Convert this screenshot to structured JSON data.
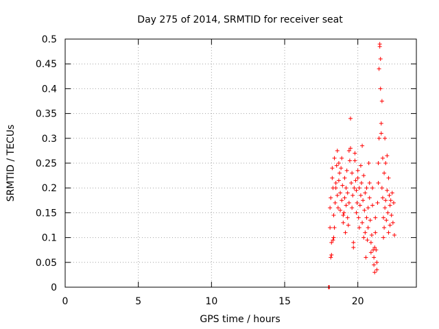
{
  "chart_data": {
    "type": "scatter",
    "title": "Day 275 of 2014, SRMTID for receiver seat",
    "xlabel": "GPS time / hours",
    "ylabel": "SRMTID / TECUs",
    "xlim": [
      0,
      24
    ],
    "ylim": [
      0,
      0.5
    ],
    "x_ticks": [
      0,
      5,
      10,
      15,
      20
    ],
    "x_tick_labels": [
      "0",
      "5",
      "10",
      "15",
      "20"
    ],
    "y_ticks": [
      0,
      0.05,
      0.1,
      0.15,
      0.2,
      0.25,
      0.3,
      0.35,
      0.4,
      0.45,
      0.5
    ],
    "y_tick_labels": [
      "0",
      "0.05",
      "0.1",
      "0.15",
      "0.2",
      "0.25",
      "0.3",
      "0.35",
      "0.4",
      "0.45",
      "0.5"
    ],
    "grid": true,
    "marker": "+",
    "marker_color": "#ff0000",
    "series": [
      {
        "name": "SRMTID",
        "points": [
          [
            18.0,
            0.0
          ],
          [
            18.02,
            0.0
          ],
          [
            18.05,
            0.0
          ],
          [
            18.1,
            0.12
          ],
          [
            18.1,
            0.16
          ],
          [
            18.15,
            0.18
          ],
          [
            18.15,
            0.06
          ],
          [
            18.2,
            0.065
          ],
          [
            18.2,
            0.09
          ],
          [
            18.25,
            0.22
          ],
          [
            18.25,
            0.24
          ],
          [
            18.3,
            0.2
          ],
          [
            18.3,
            0.095
          ],
          [
            18.35,
            0.1
          ],
          [
            18.35,
            0.145
          ],
          [
            18.4,
            0.26
          ],
          [
            18.4,
            0.12
          ],
          [
            18.45,
            0.17
          ],
          [
            18.5,
            0.21
          ],
          [
            18.5,
            0.2
          ],
          [
            18.55,
            0.245
          ],
          [
            18.6,
            0.275
          ],
          [
            18.6,
            0.185
          ],
          [
            18.65,
            0.16
          ],
          [
            18.7,
            0.25
          ],
          [
            18.7,
            0.215
          ],
          [
            18.75,
            0.23
          ],
          [
            18.8,
            0.19
          ],
          [
            18.8,
            0.155
          ],
          [
            18.85,
            0.24
          ],
          [
            18.9,
            0.175
          ],
          [
            18.9,
            0.26
          ],
          [
            18.95,
            0.205
          ],
          [
            19.0,
            0.13
          ],
          [
            19.0,
            0.145
          ],
          [
            19.05,
            0.15
          ],
          [
            19.1,
            0.22
          ],
          [
            19.1,
            0.18
          ],
          [
            19.15,
            0.11
          ],
          [
            19.2,
            0.165
          ],
          [
            19.2,
            0.2
          ],
          [
            19.25,
            0.235
          ],
          [
            19.3,
            0.14
          ],
          [
            19.3,
            0.19
          ],
          [
            19.35,
            0.125
          ],
          [
            19.4,
            0.275
          ],
          [
            19.4,
            0.17
          ],
          [
            19.45,
            0.255
          ],
          [
            19.5,
            0.34
          ],
          [
            19.5,
            0.28
          ],
          [
            19.55,
            0.21
          ],
          [
            19.6,
            0.23
          ],
          [
            19.6,
            0.16
          ],
          [
            19.65,
            0.185
          ],
          [
            19.7,
            0.09
          ],
          [
            19.7,
            0.08
          ],
          [
            19.75,
            0.2
          ],
          [
            19.8,
            0.27
          ],
          [
            19.8,
            0.255
          ],
          [
            19.85,
            0.215
          ],
          [
            19.9,
            0.195
          ],
          [
            19.9,
            0.15
          ],
          [
            19.95,
            0.17
          ],
          [
            20.0,
            0.235
          ],
          [
            20.0,
            0.22
          ],
          [
            20.05,
            0.14
          ],
          [
            20.1,
            0.2
          ],
          [
            20.1,
            0.12
          ],
          [
            20.15,
            0.165
          ],
          [
            20.2,
            0.245
          ],
          [
            20.2,
            0.185
          ],
          [
            20.25,
            0.21
          ],
          [
            20.3,
            0.285
          ],
          [
            20.3,
            0.13
          ],
          [
            20.35,
            0.175
          ],
          [
            20.4,
            0.225
          ],
          [
            20.4,
            0.1
          ],
          [
            20.45,
            0.155
          ],
          [
            20.5,
            0.19
          ],
          [
            20.5,
            0.11
          ],
          [
            20.55,
            0.06
          ],
          [
            20.6,
            0.2
          ],
          [
            20.6,
            0.14
          ],
          [
            20.65,
            0.095
          ],
          [
            20.7,
            0.16
          ],
          [
            20.7,
            0.12
          ],
          [
            20.75,
            0.25
          ],
          [
            20.8,
            0.21
          ],
          [
            20.8,
            0.18
          ],
          [
            20.85,
            0.135
          ],
          [
            20.9,
            0.09
          ],
          [
            20.9,
            0.07
          ],
          [
            20.95,
            0.105
          ],
          [
            21.0,
            0.2
          ],
          [
            21.0,
            0.165
          ],
          [
            21.05,
            0.075
          ],
          [
            21.1,
            0.045
          ],
          [
            21.1,
            0.06
          ],
          [
            21.15,
            0.08
          ],
          [
            21.15,
            0.03
          ],
          [
            21.2,
            0.14
          ],
          [
            21.2,
            0.11
          ],
          [
            21.25,
            0.075
          ],
          [
            21.3,
            0.05
          ],
          [
            21.3,
            0.035
          ],
          [
            21.35,
            0.17
          ],
          [
            21.4,
            0.25
          ],
          [
            21.4,
            0.21
          ],
          [
            21.45,
            0.3
          ],
          [
            21.45,
            0.44
          ],
          [
            21.5,
            0.49
          ],
          [
            21.5,
            0.485
          ],
          [
            21.55,
            0.46
          ],
          [
            21.55,
            0.4
          ],
          [
            21.6,
            0.31
          ],
          [
            21.6,
            0.33
          ],
          [
            21.65,
            0.375
          ],
          [
            21.65,
            0.2
          ],
          [
            21.7,
            0.26
          ],
          [
            21.7,
            0.18
          ],
          [
            21.75,
            0.14
          ],
          [
            21.75,
            0.1
          ],
          [
            21.8,
            0.23
          ],
          [
            21.8,
            0.12
          ],
          [
            21.85,
            0.16
          ],
          [
            21.85,
            0.3
          ],
          [
            21.9,
            0.25
          ],
          [
            21.9,
            0.175
          ],
          [
            21.95,
            0.135
          ],
          [
            22.0,
            0.265
          ],
          [
            22.0,
            0.195
          ],
          [
            22.05,
            0.15
          ],
          [
            22.1,
            0.11
          ],
          [
            22.1,
            0.22
          ],
          [
            22.15,
            0.185
          ],
          [
            22.2,
            0.165
          ],
          [
            22.2,
            0.125
          ],
          [
            22.25,
            0.175
          ],
          [
            22.3,
            0.145
          ],
          [
            22.35,
            0.19
          ],
          [
            22.4,
            0.13
          ],
          [
            22.45,
            0.17
          ],
          [
            22.5,
            0.105
          ]
        ]
      }
    ]
  }
}
